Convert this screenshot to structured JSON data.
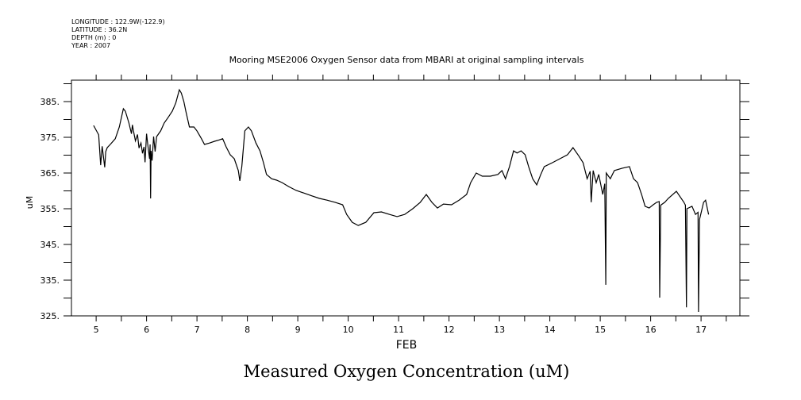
{
  "header": {
    "longitude": "LONGITUDE : 122.9W(-122.9)",
    "latitude": "LATITUDE : 36.2N",
    "depth": "DEPTH (m) : 0",
    "year": "YEAR : 2007"
  },
  "chart_data": {
    "type": "line",
    "title": "Mooring MSE2006 Oxygen Sensor data from MBARI at original sampling intervals",
    "xlabel": "FEB",
    "ylabel": "uM",
    "caption": "Measured Oxygen Concentration (uM)",
    "xlim": [
      4.51,
      17.77
    ],
    "ylim": [
      325,
      391
    ],
    "x_ticks": [
      "5",
      "6",
      "7",
      "8",
      "9",
      "10",
      "11",
      "12",
      "13",
      "14",
      "15",
      "16",
      "17"
    ],
    "y_ticks": [
      "325.",
      "335.",
      "345.",
      "355.",
      "365.",
      "375.",
      "385."
    ],
    "grid": false,
    "line_color": "#000000",
    "series": [
      {
        "name": "Oxygen",
        "x": [
          4.95,
          5.05,
          5.09,
          5.12,
          5.14,
          5.17,
          5.19,
          5.22,
          5.28,
          5.38,
          5.46,
          5.54,
          5.58,
          5.65,
          5.7,
          5.72,
          5.74,
          5.78,
          5.82,
          5.85,
          5.89,
          5.92,
          5.95,
          5.97,
          6.0,
          6.03,
          6.06,
          6.07,
          6.08,
          6.09,
          6.11,
          6.14,
          6.17,
          6.2,
          6.28,
          6.35,
          6.43,
          6.51,
          6.58,
          6.65,
          6.69,
          6.74,
          6.78,
          6.85,
          6.94,
          7.0,
          7.09,
          7.15,
          7.25,
          7.35,
          7.43,
          7.51,
          7.58,
          7.66,
          7.74,
          7.82,
          7.85,
          7.89,
          7.95,
          8.02,
          8.08,
          8.17,
          8.25,
          8.32,
          8.38,
          8.48,
          8.58,
          8.69,
          8.82,
          8.97,
          9.12,
          9.28,
          9.43,
          9.58,
          9.74,
          9.89,
          9.97,
          10.08,
          10.2,
          10.35,
          10.51,
          10.66,
          10.82,
          10.97,
          11.12,
          11.28,
          11.43,
          11.55,
          11.66,
          11.77,
          11.89,
          12.05,
          12.2,
          12.35,
          12.43,
          12.54,
          12.66,
          12.82,
          12.97,
          13.05,
          13.12,
          13.2,
          13.28,
          13.35,
          13.43,
          13.51,
          13.58,
          13.66,
          13.74,
          13.82,
          13.89,
          14.05,
          14.2,
          14.35,
          14.46,
          14.58,
          14.66,
          14.74,
          14.8,
          14.82,
          14.86,
          14.92,
          14.97,
          15.05,
          15.09,
          15.11,
          15.12,
          15.2,
          15.28,
          15.43,
          15.58,
          15.66,
          15.74,
          15.82,
          15.89,
          15.97,
          16.05,
          16.12,
          16.17,
          16.18,
          16.2,
          16.28,
          16.35,
          16.51,
          16.66,
          16.69,
          16.71,
          16.72,
          16.82,
          16.89,
          16.94,
          16.95,
          16.97,
          17.05,
          17.09,
          17.15
        ],
        "y": [
          378.3,
          375.7,
          367.2,
          372.5,
          370.1,
          366.6,
          371.0,
          372.1,
          373.0,
          374.6,
          377.9,
          383.0,
          382.3,
          379.0,
          376.0,
          378.5,
          376.8,
          374.0,
          375.8,
          372.0,
          373.4,
          370.5,
          372.3,
          368.0,
          376.0,
          372.3,
          369.0,
          373.0,
          357.9,
          371.2,
          368.5,
          375.2,
          371.0,
          375.2,
          376.8,
          379.0,
          380.6,
          382.3,
          384.6,
          388.3,
          387.4,
          385.0,
          382.3,
          377.9,
          377.9,
          376.8,
          374.6,
          373.0,
          373.4,
          373.9,
          374.2,
          374.6,
          372.3,
          370.1,
          369.0,
          365.7,
          362.8,
          366.8,
          376.8,
          377.9,
          376.8,
          373.4,
          371.2,
          367.9,
          364.6,
          363.4,
          363.0,
          362.3,
          361.2,
          360.1,
          359.4,
          358.6,
          357.9,
          357.4,
          356.8,
          356.1,
          353.4,
          351.2,
          350.3,
          351.2,
          353.9,
          354.1,
          353.4,
          352.8,
          353.4,
          355.0,
          356.8,
          359.0,
          356.8,
          355.2,
          356.3,
          356.1,
          357.4,
          359.0,
          362.3,
          365.0,
          364.1,
          364.1,
          364.6,
          365.7,
          363.4,
          366.8,
          371.2,
          370.6,
          371.2,
          370.1,
          366.8,
          363.4,
          361.7,
          364.6,
          366.8,
          367.9,
          369.0,
          370.1,
          372.1,
          369.7,
          367.9,
          363.4,
          365.5,
          356.8,
          365.7,
          362.3,
          364.6,
          359.0,
          362.0,
          333.7,
          365.0,
          363.4,
          365.7,
          366.3,
          366.8,
          363.4,
          362.3,
          359.0,
          355.7,
          355.2,
          356.1,
          356.8,
          357.0,
          330.1,
          356.0,
          356.8,
          357.9,
          359.9,
          356.8,
          356.0,
          327.4,
          355.0,
          355.7,
          353.4,
          354.0,
          326.1,
          352.0,
          356.8,
          357.4,
          353.4
        ]
      }
    ]
  }
}
